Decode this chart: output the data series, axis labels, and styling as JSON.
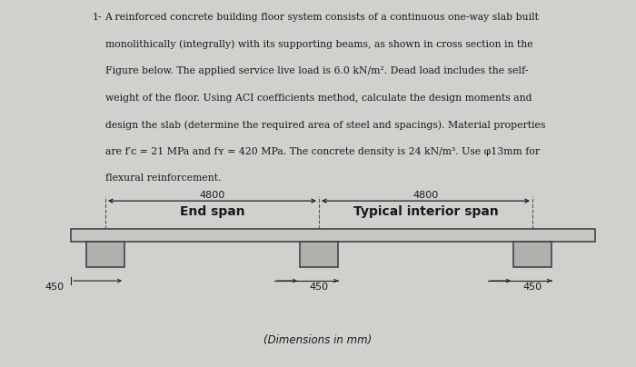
{
  "bg_color": "#d0d0cc",
  "text_color": "#1a1a1a",
  "title_number": "1-",
  "para_line1": "A reinforced concrete building floor system consists of a continuous one-way slab built",
  "para_line2": "monolithically (integrally) with its supporting beams, as shown in cross section in the",
  "para_line3": "Figure below. The applied service live load is 6.0 kN/m². Dead load includes the self-",
  "para_line4": "weight of the floor. Using ACI coefficients method, calculate the design moments and",
  "para_line5": "design the slab (determine the required area of steel and spacings). Material properties",
  "para_line6": "are f′ᴄ = 21 MPa and fʏ = 420 MPa. The concrete density is 24 kN/m³. Use φ13mm for",
  "para_line7": "flexural reinforcement.",
  "span1_label": "4800",
  "span2_label": "4800",
  "end_span_label": "End span",
  "interior_span_label": "Typical interior span",
  "dim_label": "(Dimensions in mm)",
  "beam_width_label": "450",
  "slab_fill": "#c8c8c4",
  "slab_edge": "#444444",
  "beam_fill": "#b0b0ac",
  "beam_edge": "#444444",
  "arrow_color": "#222222",
  "dim_line_color": "#222222"
}
